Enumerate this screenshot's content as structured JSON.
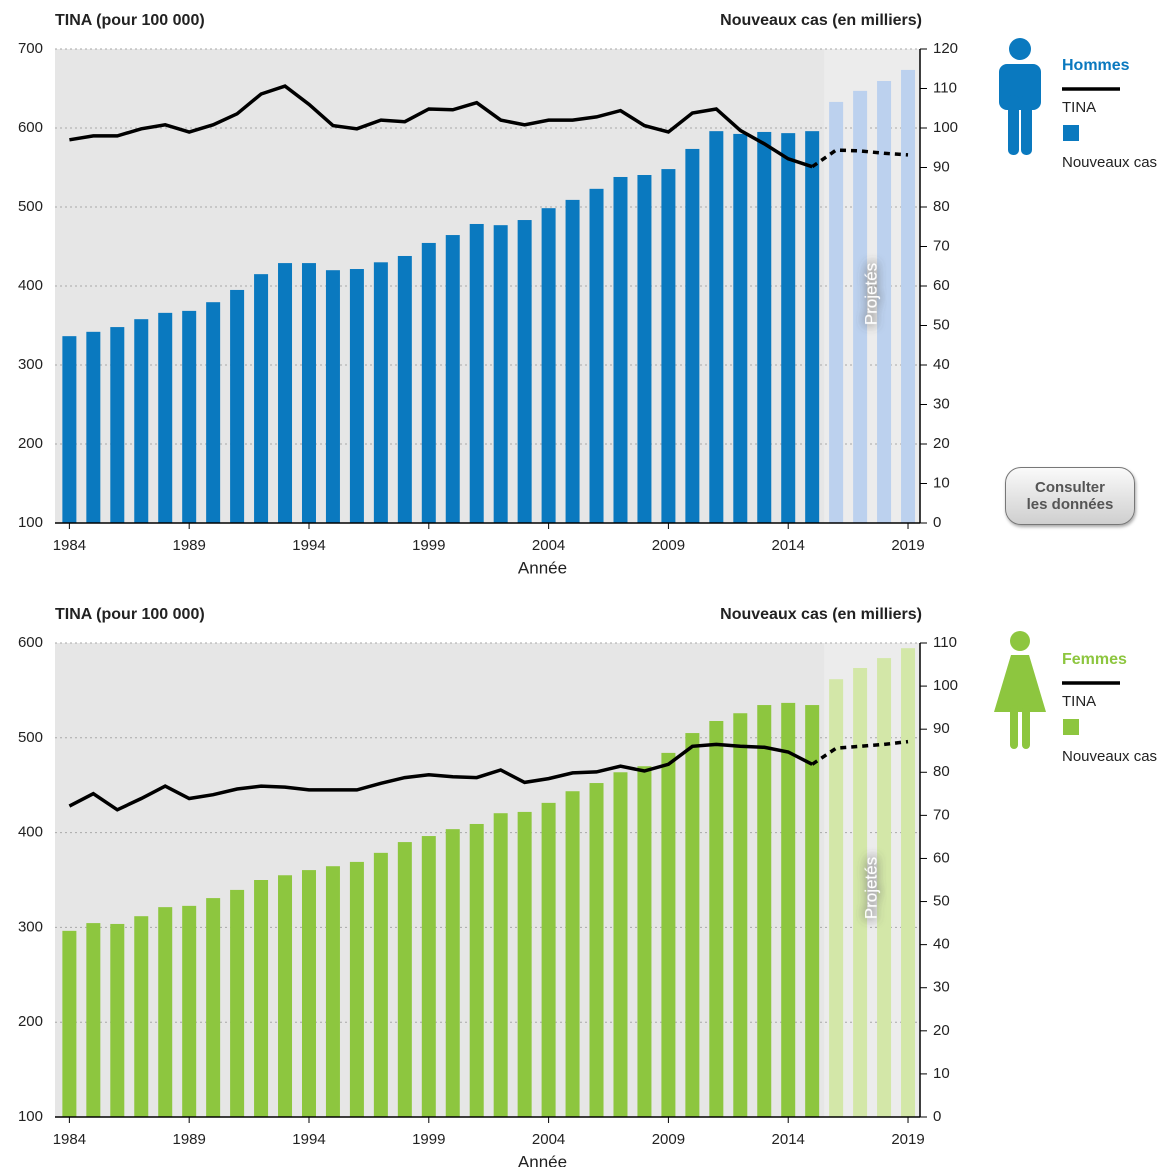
{
  "chart_data": [
    {
      "type": "combo",
      "y_label": "TINA (pour 100 000)",
      "y2_label": "Nouveaux cas (en milliers)",
      "x_label": "Année",
      "legend_title": "Hommes",
      "legend_color": "#0a79bf",
      "projection_label": "Projetés",
      "projection_start": 2016,
      "x": [
        1984,
        1985,
        1986,
        1987,
        1988,
        1989,
        1990,
        1991,
        1992,
        1993,
        1994,
        1995,
        1996,
        1997,
        1998,
        1999,
        2000,
        2001,
        2002,
        2003,
        2004,
        2005,
        2006,
        2007,
        2008,
        2009,
        2010,
        2011,
        2012,
        2013,
        2014,
        2015,
        2016,
        2017,
        2018,
        2019
      ],
      "xlim": [
        1983.4,
        2019.5
      ],
      "xticks": [
        1984,
        1989,
        1994,
        1999,
        2004,
        2009,
        2014,
        2019
      ],
      "ylim": [
        100,
        700
      ],
      "yticks": [
        100,
        200,
        300,
        400,
        500,
        600,
        700
      ],
      "y2lim": [
        0,
        120
      ],
      "y2ticks": [
        0,
        10,
        20,
        30,
        40,
        50,
        60,
        70,
        80,
        90,
        100,
        110,
        120
      ],
      "grid": true,
      "series": [
        {
          "name": "Nouveaux cas",
          "type": "bar",
          "axis": "y2",
          "color": "#0a79bf",
          "projected_color": "#bcd1ee",
          "values": [
            47.3,
            48.4,
            49.6,
            51.6,
            53.2,
            53.7,
            55.9,
            59,
            63,
            65.8,
            65.8,
            64,
            64.3,
            66,
            67.6,
            70.9,
            72.9,
            75.7,
            75.4,
            76.7,
            79.7,
            81.8,
            84.6,
            87.6,
            88.1,
            89.6,
            94.7,
            99.2,
            98.5,
            99,
            98.7,
            99.2,
            106.6,
            109.4,
            111.9,
            114.7
          ]
        },
        {
          "name": "TINA",
          "type": "line",
          "color": "#000000",
          "values": [
            585,
            590,
            590,
            599,
            604,
            595,
            604,
            618,
            643,
            653,
            630,
            603,
            599,
            610,
            608,
            624,
            623,
            632,
            610,
            604,
            610,
            610,
            614,
            622,
            603,
            595,
            619,
            624,
            597,
            580,
            561,
            551,
            572,
            571,
            568,
            566
          ]
        }
      ]
    },
    {
      "type": "combo",
      "y_label": "TINA (pour 100 000)",
      "y2_label": "Nouveaux cas (en milliers)",
      "x_label": "Année",
      "legend_title": "Femmes",
      "legend_color": "#8dc63f",
      "projection_label": "Projetés",
      "projection_start": 2016,
      "x": [
        1984,
        1985,
        1986,
        1987,
        1988,
        1989,
        1990,
        1991,
        1992,
        1993,
        1994,
        1995,
        1996,
        1997,
        1998,
        1999,
        2000,
        2001,
        2002,
        2003,
        2004,
        2005,
        2006,
        2007,
        2008,
        2009,
        2010,
        2011,
        2012,
        2013,
        2014,
        2015,
        2016,
        2017,
        2018,
        2019
      ],
      "xlim": [
        1983.4,
        2019.5
      ],
      "xticks": [
        1984,
        1989,
        1994,
        1999,
        2004,
        2009,
        2014,
        2019
      ],
      "ylim": [
        100,
        600
      ],
      "yticks": [
        100,
        200,
        300,
        400,
        500,
        600
      ],
      "y2lim": [
        0,
        110
      ],
      "y2ticks": [
        0,
        10,
        20,
        30,
        40,
        50,
        60,
        70,
        80,
        90,
        100,
        110
      ],
      "grid": true,
      "series": [
        {
          "name": "Nouveaux cas",
          "type": "bar",
          "axis": "y2",
          "color": "#8dc63f",
          "projected_color": "#d3e7a8",
          "values": [
            43.2,
            45,
            44.8,
            46.6,
            48.7,
            49,
            50.8,
            52.7,
            55,
            56.1,
            57.3,
            58.2,
            59.2,
            61.3,
            63.8,
            65.2,
            66.8,
            68,
            70.5,
            70.8,
            72.9,
            75.6,
            77.5,
            80,
            81.4,
            84.5,
            89.1,
            91.9,
            93.7,
            95.6,
            96.1,
            95.6,
            101.6,
            104.2,
            106.5,
            108.8
          ]
        },
        {
          "name": "TINA",
          "type": "line",
          "color": "#000000",
          "values": [
            428,
            441,
            424,
            436,
            449,
            436,
            440,
            446,
            449,
            448,
            445,
            445,
            445,
            452,
            458,
            461,
            459,
            458,
            466,
            453,
            457,
            463,
            464,
            470,
            465,
            472,
            491,
            493,
            491,
            490,
            485,
            472,
            489,
            491,
            493,
            496
          ]
        }
      ]
    }
  ],
  "button": "Consulter les données"
}
